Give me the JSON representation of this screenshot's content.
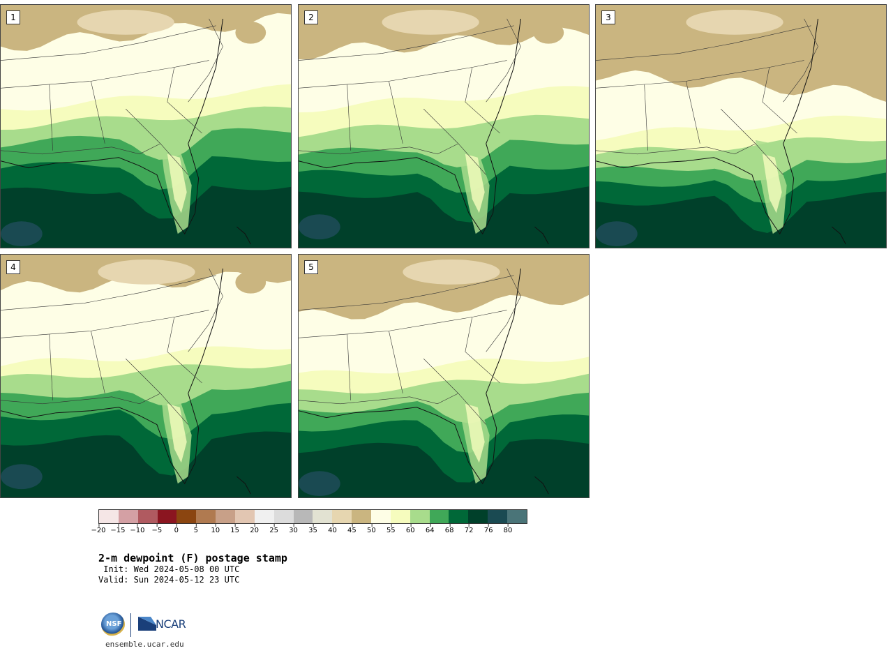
{
  "panels": [
    {
      "label": "1",
      "variant": 0
    },
    {
      "label": "2",
      "variant": 1
    },
    {
      "label": "3",
      "variant": 2
    },
    {
      "label": "4",
      "variant": 3
    },
    {
      "label": "5",
      "variant": 4
    }
  ],
  "colorbar": {
    "colors": [
      "#f5e6e6",
      "#d4a0a4",
      "#b05a60",
      "#8b1520",
      "#8b4510",
      "#b07a50",
      "#c8a088",
      "#e2c6b2",
      "#f0f0f0",
      "#dcdcdc",
      "#b8b8b8",
      "#e2e2d2",
      "#e6d6b0",
      "#cab580",
      "#fefee6",
      "#f6fcbe",
      "#a8dc8c",
      "#40a858",
      "#006838",
      "#00402a",
      "#1a4a52",
      "#4a7478"
    ],
    "ticks": [
      "−20",
      "−15",
      "−10",
      "−5",
      "0",
      "5",
      "10",
      "15",
      "20",
      "25",
      "30",
      "35",
      "40",
      "45",
      "50",
      "55",
      "60",
      "64",
      "68",
      "72",
      "76",
      "80"
    ]
  },
  "title": "2-m dewpoint (F) postage stamp",
  "init": " Init: Wed 2024-05-08 00 UTC",
  "valid": "Valid: Sun 2024-05-12 23 UTC",
  "logos": {
    "nsf": "NSF",
    "ncar": "NCAR"
  },
  "website": "ensemble.ucar.edu"
}
